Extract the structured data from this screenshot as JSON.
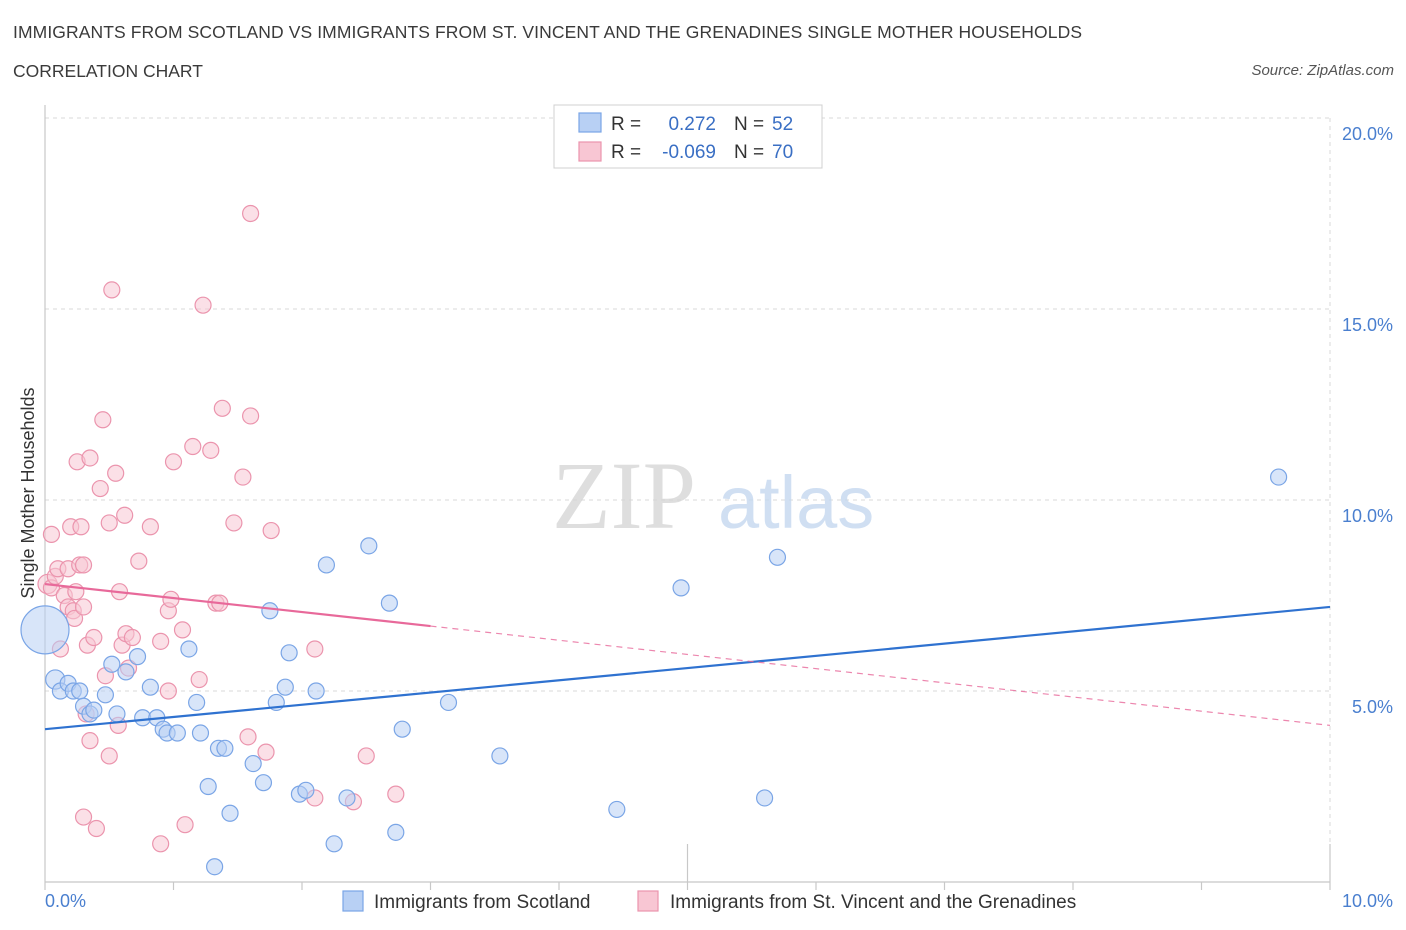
{
  "header": {
    "title": "IMMIGRANTS FROM SCOTLAND VS IMMIGRANTS FROM ST. VINCENT AND THE GRENADINES SINGLE MOTHER HOUSEHOLDS",
    "subtitle": "CORRELATION CHART",
    "source": "Source: ZipAtlas.com"
  },
  "watermark": {
    "zip": "ZIP",
    "atlas": "atlas"
  },
  "colors": {
    "blue_fill": "#b8d0f4",
    "blue_stroke": "#7aa5e6",
    "blue_line": "#2f72d0",
    "pink_fill": "#f8c6d3",
    "pink_stroke": "#eb94ad",
    "pink_line": "#e8699a",
    "tick_text": "#4a7fcf",
    "grid": "#d8d8d8"
  },
  "legend": {
    "rows": [
      {
        "r_label": "R =",
        "r_value": "0.272",
        "n_label": "N =",
        "n_value": "52"
      },
      {
        "r_label": "R =",
        "r_value": "-0.069",
        "n_label": "N =",
        "n_value": "70"
      }
    ]
  },
  "chart_data": {
    "type": "scatter",
    "xlabel": "",
    "ylabel": "Single Mother Households",
    "xlim": [
      0,
      10
    ],
    "ylim": [
      0,
      20
    ],
    "x_tick_labels": [
      "0.0%",
      "10.0%"
    ],
    "y_ticks": [
      {
        "value": 20,
        "label": "20.0%"
      },
      {
        "value": 15,
        "label": "15.0%"
      },
      {
        "value": 10,
        "label": "10.0%"
      },
      {
        "value": 5,
        "label": "5.0%"
      }
    ],
    "grid": true,
    "legend_position": "top-center",
    "series": [
      {
        "name": "Immigrants from Scotland",
        "color": "blue",
        "trend": {
          "x0": 0.0,
          "y0": 4.0,
          "x1": 10.0,
          "y1": 7.2
        },
        "points": [
          [
            0.0,
            6.6,
            3
          ],
          [
            0.08,
            5.3,
            1.2
          ],
          [
            0.12,
            5.0,
            1
          ],
          [
            0.18,
            5.2,
            1
          ],
          [
            0.22,
            5.0,
            1
          ],
          [
            0.27,
            5.0,
            1
          ],
          [
            0.3,
            4.6,
            1
          ],
          [
            0.35,
            4.4,
            1
          ],
          [
            0.38,
            4.5,
            1
          ],
          [
            0.47,
            4.9,
            1
          ],
          [
            0.52,
            5.7,
            1
          ],
          [
            0.56,
            4.4,
            1
          ],
          [
            0.63,
            5.5,
            1
          ],
          [
            0.72,
            5.9,
            1
          ],
          [
            0.76,
            4.3,
            1
          ],
          [
            0.82,
            5.1,
            1
          ],
          [
            0.87,
            4.3,
            1
          ],
          [
            0.92,
            4.0,
            1
          ],
          [
            0.95,
            3.9,
            1
          ],
          [
            1.03,
            3.9,
            1
          ],
          [
            1.12,
            6.1,
            1
          ],
          [
            1.18,
            4.7,
            1
          ],
          [
            1.21,
            3.9,
            1
          ],
          [
            1.27,
            2.5,
            1
          ],
          [
            1.32,
            0.4,
            1
          ],
          [
            1.35,
            3.5,
            1
          ],
          [
            1.4,
            3.5,
            1
          ],
          [
            1.44,
            1.8,
            1
          ],
          [
            1.62,
            3.1,
            1
          ],
          [
            1.7,
            2.6,
            1
          ],
          [
            1.75,
            7.1,
            1
          ],
          [
            1.8,
            4.7,
            1
          ],
          [
            1.87,
            5.1,
            1
          ],
          [
            1.9,
            6.0,
            1
          ],
          [
            1.98,
            2.3,
            1
          ],
          [
            2.03,
            2.4,
            1
          ],
          [
            2.11,
            5.0,
            1
          ],
          [
            2.19,
            8.3,
            1
          ],
          [
            2.25,
            1.0,
            1
          ],
          [
            2.35,
            2.2,
            1
          ],
          [
            2.52,
            8.8,
            1
          ],
          [
            2.68,
            7.3,
            1
          ],
          [
            2.73,
            1.3,
            1
          ],
          [
            2.78,
            4.0,
            1
          ],
          [
            3.14,
            4.7,
            1
          ],
          [
            3.54,
            3.3,
            1
          ],
          [
            4.45,
            1.9,
            1
          ],
          [
            4.95,
            7.7,
            1
          ],
          [
            5.6,
            2.2,
            1
          ],
          [
            5.7,
            8.5,
            1
          ],
          [
            9.6,
            10.6,
            1
          ]
        ]
      },
      {
        "name": "Immigrants from St. Vincent and the Grenadines",
        "color": "pink",
        "trend": {
          "x0": 0.0,
          "y0": 7.8,
          "x1": 3.0,
          "y1": 6.7
        },
        "trend_dashed": {
          "x0": 3.0,
          "y0": 6.7,
          "x1": 10.0,
          "y1": 4.1
        },
        "points": [
          [
            0.02,
            7.8,
            1.2
          ],
          [
            0.05,
            7.7,
            1
          ],
          [
            0.05,
            9.1,
            1
          ],
          [
            0.08,
            8.0,
            1
          ],
          [
            0.1,
            8.2,
            1
          ],
          [
            0.12,
            6.1,
            1
          ],
          [
            0.15,
            7.5,
            1
          ],
          [
            0.18,
            7.2,
            1
          ],
          [
            0.18,
            8.2,
            1
          ],
          [
            0.2,
            9.3,
            1
          ],
          [
            0.22,
            7.1,
            1
          ],
          [
            0.23,
            6.9,
            1
          ],
          [
            0.24,
            7.6,
            1
          ],
          [
            0.25,
            11.0,
            1
          ],
          [
            0.27,
            8.3,
            1
          ],
          [
            0.28,
            9.3,
            1
          ],
          [
            0.3,
            1.7,
            1
          ],
          [
            0.3,
            8.3,
            1
          ],
          [
            0.3,
            7.2,
            1
          ],
          [
            0.32,
            4.4,
            1
          ],
          [
            0.33,
            6.2,
            1
          ],
          [
            0.35,
            3.7,
            1
          ],
          [
            0.35,
            11.1,
            1
          ],
          [
            0.38,
            6.4,
            1
          ],
          [
            0.4,
            1.4,
            1
          ],
          [
            0.43,
            10.3,
            1
          ],
          [
            0.45,
            12.1,
            1
          ],
          [
            0.47,
            5.4,
            1
          ],
          [
            0.5,
            3.3,
            1
          ],
          [
            0.5,
            9.4,
            1
          ],
          [
            0.52,
            15.5,
            1
          ],
          [
            0.55,
            10.7,
            1
          ],
          [
            0.57,
            4.1,
            1
          ],
          [
            0.58,
            7.6,
            1
          ],
          [
            0.6,
            6.2,
            1
          ],
          [
            0.62,
            9.6,
            1
          ],
          [
            0.63,
            6.5,
            1
          ],
          [
            0.65,
            5.6,
            1
          ],
          [
            0.68,
            6.4,
            1
          ],
          [
            0.73,
            8.4,
            1
          ],
          [
            0.82,
            9.3,
            1
          ],
          [
            0.9,
            6.3,
            1
          ],
          [
            0.9,
            1.0,
            1
          ],
          [
            0.96,
            7.1,
            1
          ],
          [
            0.96,
            5.0,
            1
          ],
          [
            0.98,
            7.4,
            1
          ],
          [
            1.0,
            11.0,
            1
          ],
          [
            1.07,
            6.6,
            1
          ],
          [
            1.09,
            1.5,
            1
          ],
          [
            1.15,
            11.4,
            1
          ],
          [
            1.2,
            5.3,
            1
          ],
          [
            1.23,
            15.1,
            1
          ],
          [
            1.29,
            11.3,
            1
          ],
          [
            1.33,
            7.3,
            1
          ],
          [
            1.36,
            7.3,
            1
          ],
          [
            1.38,
            12.4,
            1
          ],
          [
            1.47,
            9.4,
            1
          ],
          [
            1.54,
            10.6,
            1
          ],
          [
            1.58,
            3.8,
            1
          ],
          [
            1.6,
            12.2,
            1
          ],
          [
            1.6,
            17.5,
            1
          ],
          [
            1.72,
            3.4,
            1
          ],
          [
            1.76,
            9.2,
            1
          ],
          [
            2.1,
            6.1,
            1
          ],
          [
            2.1,
            2.2,
            1
          ],
          [
            2.4,
            2.1,
            1
          ],
          [
            2.5,
            3.3,
            1
          ],
          [
            2.73,
            2.3,
            1
          ]
        ]
      }
    ]
  },
  "bottom_legend": {
    "items": [
      {
        "label": "Immigrants from Scotland"
      },
      {
        "label": "Immigrants from St. Vincent and the Grenadines"
      }
    ]
  }
}
